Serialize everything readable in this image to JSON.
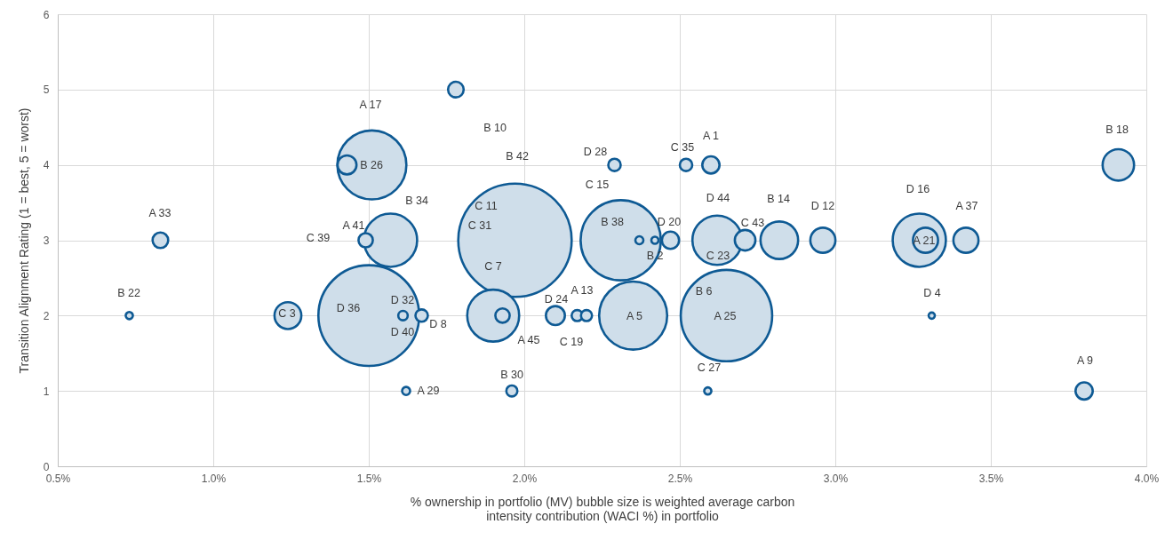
{
  "chart_data": {
    "type": "bubble",
    "xlabel": "% ownership in portfolio (MV) bubble size is weighted average carbon intensity contribution (WACI %) in portfolio",
    "ylabel": "Transition Alignment Rating (1 = best, 5 = worst)",
    "xlim": [
      0.5,
      4.0
    ],
    "xticks": [
      {
        "value": 0.5,
        "label": "0.5%"
      },
      {
        "value": 1.0,
        "label": "1.0%"
      },
      {
        "value": 1.5,
        "label": "1.5%"
      },
      {
        "value": 2.0,
        "label": "2.0%"
      },
      {
        "value": 2.5,
        "label": "2.5%"
      },
      {
        "value": 3.0,
        "label": "3.0%"
      },
      {
        "value": 3.5,
        "label": "3.5%"
      },
      {
        "value": 4.0,
        "label": "4.0%"
      }
    ],
    "ylim": [
      0,
      6
    ],
    "yticks": [
      0,
      1,
      2,
      3,
      4,
      5,
      6
    ],
    "grid": true,
    "legend": false,
    "annotations": [
      "C 39",
      "C 11",
      "C 31",
      "C 7",
      "C 23",
      "B 6",
      "D 40"
    ],
    "series": [
      {
        "color": "#0e5a94",
        "x": [
          0.83,
          0.73,
          1.24,
          1.51,
          1.43,
          1.49,
          1.57,
          1.5,
          1.61,
          1.67,
          1.62,
          1.78,
          1.97,
          1.9,
          1.93,
          1.96,
          2.1,
          2.17,
          2.2,
          2.29,
          2.31,
          2.37,
          2.35,
          2.42,
          2.47,
          2.52,
          2.6,
          2.62,
          2.71,
          2.65,
          2.59,
          2.82,
          2.96,
          3.27,
          3.29,
          3.42,
          3.31,
          3.8,
          3.91
        ],
        "values": [
          3,
          2,
          2,
          4,
          4,
          3,
          3,
          2,
          2,
          2,
          1,
          5,
          3,
          2,
          2,
          1,
          2,
          2,
          2,
          4,
          3,
          3,
          2,
          3,
          3,
          4,
          4,
          3,
          3,
          2,
          1,
          3,
          3,
          3,
          3,
          3,
          2,
          1,
          4
        ],
        "sizes": [
          0.019,
          0.004,
          0.056,
          0.37,
          0.028,
          0.016,
          0.22,
          0.79,
          0.007,
          0.012,
          0.005,
          0.019,
          1,
          0.21,
          0.016,
          0.0095,
          0.028,
          0.0095,
          0.0095,
          0.012,
          0.5,
          0.005,
          0.36,
          0.004,
          0.023,
          0.012,
          0.023,
          0.19,
          0.033,
          0.65,
          0.004,
          0.11,
          0.049,
          0.22,
          0.049,
          0.049,
          0.003,
          0.023,
          0.077
        ],
        "value_labels": [
          "A 33",
          "B 22",
          "C 3",
          "A 17",
          "B 26",
          "A 41",
          "B 34",
          "D 36",
          "D 32",
          "D 8",
          "A 29",
          "B 10",
          "B 42",
          null,
          "A 45",
          "B 30",
          "D 24",
          "C 19",
          "A 13",
          "D 28",
          "C 15",
          "B 38",
          "A 5",
          "B 2",
          "D 20",
          "C 35",
          "A 1",
          "D 44",
          "C 43",
          "A 25",
          "C 27",
          "B 14",
          "D 12",
          "D 16",
          "A 21",
          "A 37",
          "D 4",
          "A 9",
          "B 18"
        ]
      }
    ]
  }
}
